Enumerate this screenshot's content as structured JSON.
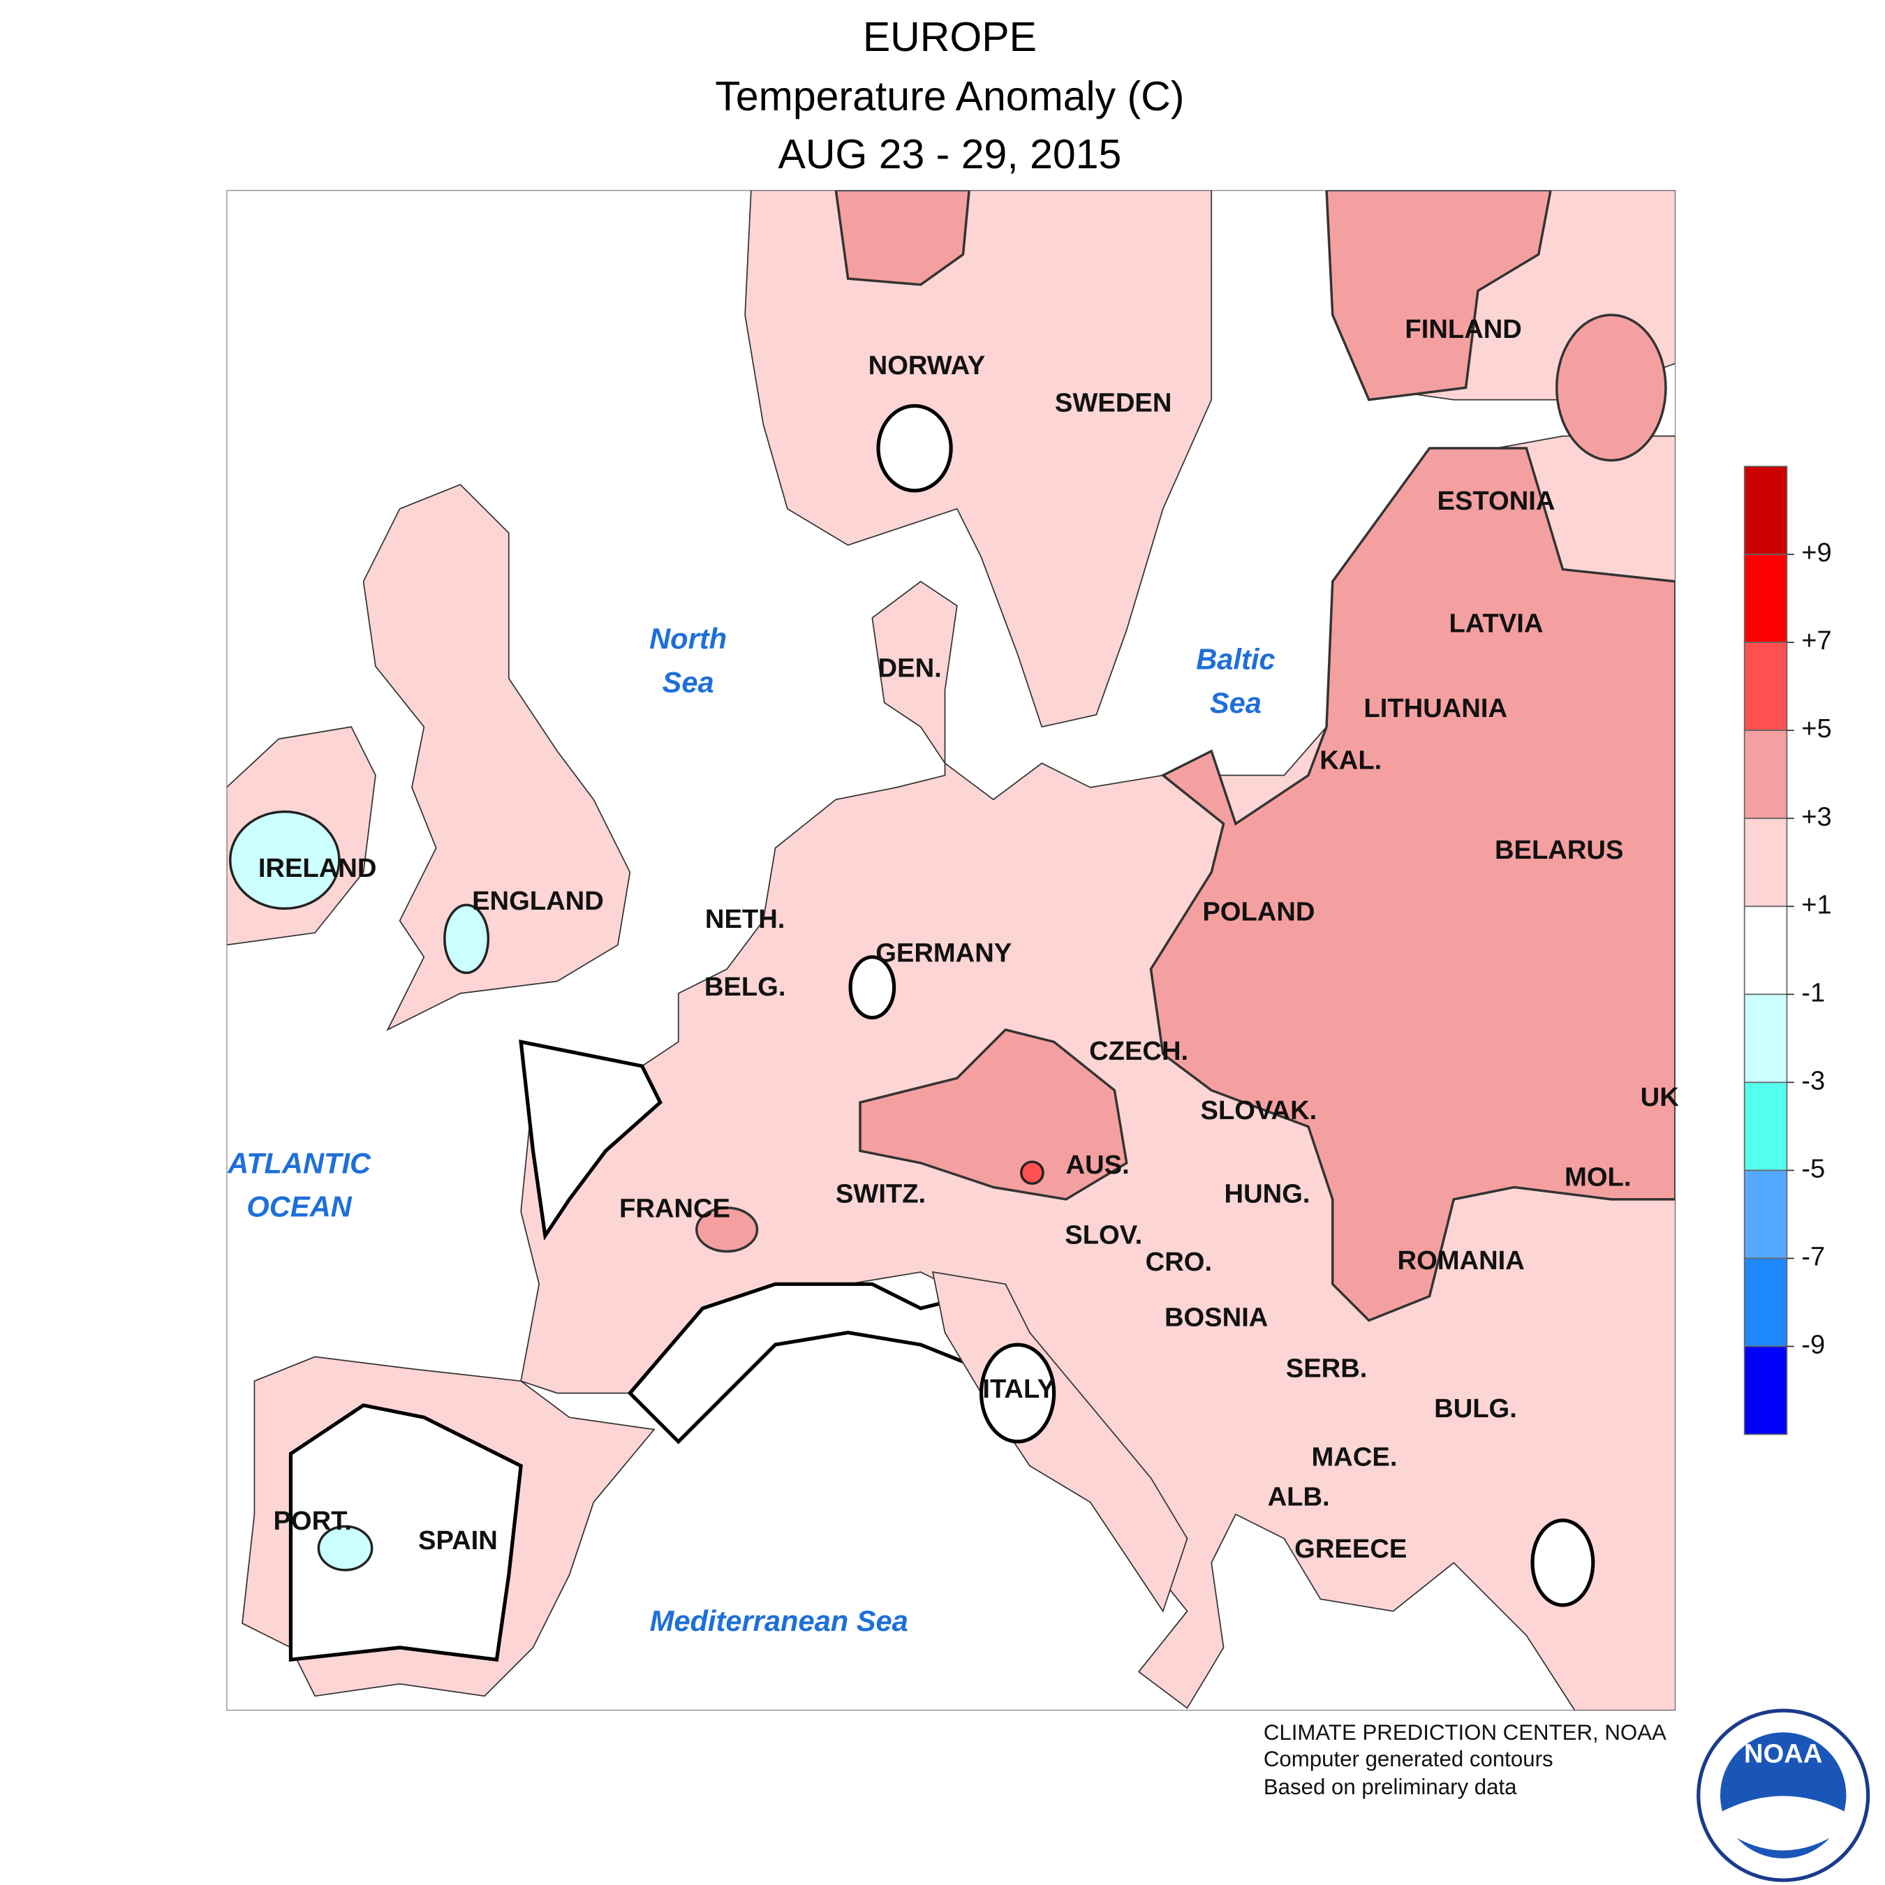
{
  "header": {
    "title": "EUROPE",
    "subtitle": "Temperature Anomaly (C)",
    "period": "AUG 23 - 29, 2015"
  },
  "map": {
    "countries": [
      "NORWAY",
      "SWEDEN",
      "FINLAND",
      "ESTONIA",
      "LATVIA",
      "LITHUANIA",
      "KAL.",
      "BELARUS",
      "POLAND",
      "GERMANY",
      "DEN.",
      "NETH.",
      "BELG.",
      "ENGLAND",
      "IRELAND",
      "FRANCE",
      "SWITZ.",
      "AUS.",
      "CZECH.",
      "SLOVAK.",
      "HUNG.",
      "SLOV.",
      "CRO.",
      "BOSNIA",
      "SERB.",
      "ROMANIA",
      "MOL.",
      "UK",
      "BULG.",
      "MACE.",
      "ALB.",
      "GREECE",
      "ITALY",
      "PORT.",
      "SPAIN"
    ],
    "seas": [
      [
        "North",
        "Sea"
      ],
      [
        "Baltic",
        "Sea"
      ],
      [
        "ATLANTIC",
        "OCEAN"
      ],
      [
        "Mediterranean Sea"
      ]
    ]
  },
  "legend": {
    "colors": [
      "#cc0000",
      "#ff0000",
      "#ff5050",
      "#f5a0a0",
      "#fdd5d5",
      "#ffffff",
      "#ccffff",
      "#55fff0",
      "#55aaff",
      "#1e88ff",
      "#0000ff"
    ],
    "lim": [
      -11,
      11
    ],
    "ticks": [
      {
        "value": 9,
        "label": "+9"
      },
      {
        "value": 7,
        "label": "+7"
      },
      {
        "value": 5,
        "label": "+5"
      },
      {
        "value": 3,
        "label": "+3"
      },
      {
        "value": 1,
        "label": "+1"
      },
      -1,
      -3,
      -5,
      -7,
      -9
    ]
  },
  "footer": {
    "lines": [
      "CLIMATE PREDICTION CENTER, NOAA",
      "Computer generated contours",
      "Based on preliminary data"
    ],
    "logo_text": "NOAA"
  }
}
